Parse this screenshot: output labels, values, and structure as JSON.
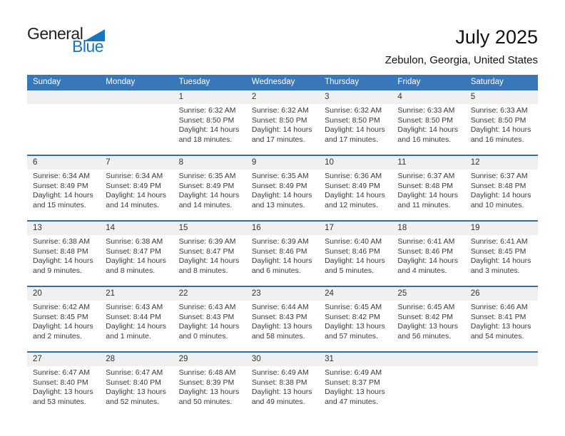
{
  "logo": {
    "part1": "General",
    "part2": "Blue",
    "triangle_icon": "blue-right-triangle"
  },
  "header": {
    "title": "July 2025",
    "subtitle": "Zebulon, Georgia, United States"
  },
  "colors": {
    "header_blue": "#3878ba",
    "divider_blue": "#2c70ae",
    "band_gray": "#f0f0f0",
    "logo_blue": "#1b75bc"
  },
  "weekdays": [
    "Sunday",
    "Monday",
    "Tuesday",
    "Wednesday",
    "Thursday",
    "Friday",
    "Saturday"
  ],
  "weeks": [
    [
      null,
      null,
      {
        "day": "1",
        "lines": [
          "Sunrise: 6:32 AM",
          "Sunset: 8:50 PM",
          "Daylight: 14 hours",
          "and 18 minutes."
        ]
      },
      {
        "day": "2",
        "lines": [
          "Sunrise: 6:32 AM",
          "Sunset: 8:50 PM",
          "Daylight: 14 hours",
          "and 17 minutes."
        ]
      },
      {
        "day": "3",
        "lines": [
          "Sunrise: 6:32 AM",
          "Sunset: 8:50 PM",
          "Daylight: 14 hours",
          "and 17 minutes."
        ]
      },
      {
        "day": "4",
        "lines": [
          "Sunrise: 6:33 AM",
          "Sunset: 8:50 PM",
          "Daylight: 14 hours",
          "and 16 minutes."
        ]
      },
      {
        "day": "5",
        "lines": [
          "Sunrise: 6:33 AM",
          "Sunset: 8:50 PM",
          "Daylight: 14 hours",
          "and 16 minutes."
        ]
      }
    ],
    [
      {
        "day": "6",
        "lines": [
          "Sunrise: 6:34 AM",
          "Sunset: 8:49 PM",
          "Daylight: 14 hours",
          "and 15 minutes."
        ]
      },
      {
        "day": "7",
        "lines": [
          "Sunrise: 6:34 AM",
          "Sunset: 8:49 PM",
          "Daylight: 14 hours",
          "and 14 minutes."
        ]
      },
      {
        "day": "8",
        "lines": [
          "Sunrise: 6:35 AM",
          "Sunset: 8:49 PM",
          "Daylight: 14 hours",
          "and 14 minutes."
        ]
      },
      {
        "day": "9",
        "lines": [
          "Sunrise: 6:35 AM",
          "Sunset: 8:49 PM",
          "Daylight: 14 hours",
          "and 13 minutes."
        ]
      },
      {
        "day": "10",
        "lines": [
          "Sunrise: 6:36 AM",
          "Sunset: 8:49 PM",
          "Daylight: 14 hours",
          "and 12 minutes."
        ]
      },
      {
        "day": "11",
        "lines": [
          "Sunrise: 6:37 AM",
          "Sunset: 8:48 PM",
          "Daylight: 14 hours",
          "and 11 minutes."
        ]
      },
      {
        "day": "12",
        "lines": [
          "Sunrise: 6:37 AM",
          "Sunset: 8:48 PM",
          "Daylight: 14 hours",
          "and 10 minutes."
        ]
      }
    ],
    [
      {
        "day": "13",
        "lines": [
          "Sunrise: 6:38 AM",
          "Sunset: 8:48 PM",
          "Daylight: 14 hours",
          "and 9 minutes."
        ]
      },
      {
        "day": "14",
        "lines": [
          "Sunrise: 6:38 AM",
          "Sunset: 8:47 PM",
          "Daylight: 14 hours",
          "and 8 minutes."
        ]
      },
      {
        "day": "15",
        "lines": [
          "Sunrise: 6:39 AM",
          "Sunset: 8:47 PM",
          "Daylight: 14 hours",
          "and 8 minutes."
        ]
      },
      {
        "day": "16",
        "lines": [
          "Sunrise: 6:39 AM",
          "Sunset: 8:46 PM",
          "Daylight: 14 hours",
          "and 6 minutes."
        ]
      },
      {
        "day": "17",
        "lines": [
          "Sunrise: 6:40 AM",
          "Sunset: 8:46 PM",
          "Daylight: 14 hours",
          "and 5 minutes."
        ]
      },
      {
        "day": "18",
        "lines": [
          "Sunrise: 6:41 AM",
          "Sunset: 8:46 PM",
          "Daylight: 14 hours",
          "and 4 minutes."
        ]
      },
      {
        "day": "19",
        "lines": [
          "Sunrise: 6:41 AM",
          "Sunset: 8:45 PM",
          "Daylight: 14 hours",
          "and 3 minutes."
        ]
      }
    ],
    [
      {
        "day": "20",
        "lines": [
          "Sunrise: 6:42 AM",
          "Sunset: 8:45 PM",
          "Daylight: 14 hours",
          "and 2 minutes."
        ]
      },
      {
        "day": "21",
        "lines": [
          "Sunrise: 6:43 AM",
          "Sunset: 8:44 PM",
          "Daylight: 14 hours",
          "and 1 minute."
        ]
      },
      {
        "day": "22",
        "lines": [
          "Sunrise: 6:43 AM",
          "Sunset: 8:43 PM",
          "Daylight: 14 hours",
          "and 0 minutes."
        ]
      },
      {
        "day": "23",
        "lines": [
          "Sunrise: 6:44 AM",
          "Sunset: 8:43 PM",
          "Daylight: 13 hours",
          "and 58 minutes."
        ]
      },
      {
        "day": "24",
        "lines": [
          "Sunrise: 6:45 AM",
          "Sunset: 8:42 PM",
          "Daylight: 13 hours",
          "and 57 minutes."
        ]
      },
      {
        "day": "25",
        "lines": [
          "Sunrise: 6:45 AM",
          "Sunset: 8:42 PM",
          "Daylight: 13 hours",
          "and 56 minutes."
        ]
      },
      {
        "day": "26",
        "lines": [
          "Sunrise: 6:46 AM",
          "Sunset: 8:41 PM",
          "Daylight: 13 hours",
          "and 54 minutes."
        ]
      }
    ],
    [
      {
        "day": "27",
        "lines": [
          "Sunrise: 6:47 AM",
          "Sunset: 8:40 PM",
          "Daylight: 13 hours",
          "and 53 minutes."
        ]
      },
      {
        "day": "28",
        "lines": [
          "Sunrise: 6:47 AM",
          "Sunset: 8:40 PM",
          "Daylight: 13 hours",
          "and 52 minutes."
        ]
      },
      {
        "day": "29",
        "lines": [
          "Sunrise: 6:48 AM",
          "Sunset: 8:39 PM",
          "Daylight: 13 hours",
          "and 50 minutes."
        ]
      },
      {
        "day": "30",
        "lines": [
          "Sunrise: 6:49 AM",
          "Sunset: 8:38 PM",
          "Daylight: 13 hours",
          "and 49 minutes."
        ]
      },
      {
        "day": "31",
        "lines": [
          "Sunrise: 6:49 AM",
          "Sunset: 8:37 PM",
          "Daylight: 13 hours",
          "and 47 minutes."
        ]
      },
      null,
      null
    ]
  ]
}
